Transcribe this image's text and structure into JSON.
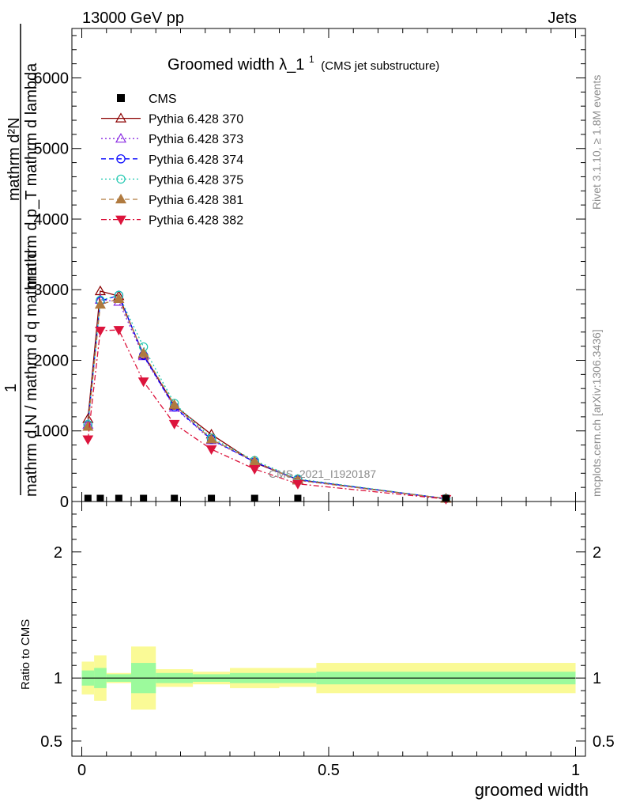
{
  "header": {
    "left": "13000 GeV pp",
    "right": "Jets"
  },
  "side_labels": {
    "rivet": "Rivet 3.1.10, ≥ 1.8M events",
    "mcplots": "mcplots.cern.ch [arXiv:1306.3436]"
  },
  "watermark": "CMS_2021_I1920187",
  "chart_data": {
    "type": "line",
    "title": "Groomed width",
    "title_symbol": "λ_1",
    "title_sup": "1",
    "title_suffix": "(CMS jet substructure)",
    "xlabel": "groomed width",
    "ylabel_main": {
      "numerator": "mathrm d²N",
      "denominator": "mathrm d p_T mathrm d lambda",
      "one": "1",
      "lower": "mathrm d N / mathrm d q mathrm d mathrm d",
      "lower_full": "mathrm d N / mathrm d q mathrm d"
    },
    "ylabel_ratio": "Ratio to CMS",
    "xlim": [
      -0.02,
      1.02
    ],
    "ylim_main": [
      0,
      6700
    ],
    "ylim_ratio": [
      0.38,
      2.4
    ],
    "x_ticks": [
      0,
      0.5,
      1
    ],
    "x_tick_labels": [
      "0",
      "0.5",
      "1"
    ],
    "y_ticks_main": [
      0,
      1000,
      2000,
      3000,
      4000,
      5000,
      6000
    ],
    "y_tick_labels_main": [
      "0",
      "1000",
      "2000",
      "3000",
      "4000",
      "5000",
      "6000"
    ],
    "y_ticks_ratio": [
      0.5,
      1,
      2
    ],
    "y_tick_labels_ratio": [
      "0.5",
      "1",
      "2"
    ],
    "bin_edges": [
      0,
      0.025,
      0.05,
      0.1,
      0.15,
      0.225,
      0.3,
      0.4,
      0.475,
      1.0
    ],
    "x": [
      0.0125,
      0.0375,
      0.075,
      0.125,
      0.1875,
      0.2625,
      0.35,
      0.4375,
      0.7375
    ],
    "data": {
      "name": "CMS",
      "values": [
        14,
        14,
        13,
        13,
        11,
        9,
        7,
        6,
        3
      ]
    },
    "series": [
      {
        "name": "Pythia 6.428 370",
        "color": "#8b0000",
        "marker": "triangle-open",
        "dash": "solid",
        "values": [
          1170,
          2980,
          2910,
          2080,
          1360,
          950,
          550,
          310,
          40
        ]
      },
      {
        "name": "Pythia 6.428 373",
        "color": "#8a2be2",
        "marker": "triangle-open",
        "dash": "dot",
        "values": [
          1090,
          2860,
          2830,
          2060,
          1330,
          870,
          560,
          300,
          40
        ]
      },
      {
        "name": "Pythia 6.428 374",
        "color": "#0000ff",
        "marker": "circle-open",
        "dash": "dash",
        "values": [
          1090,
          2840,
          2920,
          2070,
          1340,
          880,
          560,
          310,
          40
        ]
      },
      {
        "name": "Pythia 6.428 375",
        "color": "#20c8b0",
        "marker": "circle-open",
        "dash": "dot",
        "values": [
          1090,
          2850,
          2920,
          2190,
          1390,
          900,
          580,
          320,
          40
        ]
      },
      {
        "name": "Pythia 6.428 381",
        "color": "#b07a3f",
        "marker": "triangle-filled",
        "dash": "dash",
        "values": [
          1060,
          2790,
          2870,
          2100,
          1370,
          880,
          570,
          300,
          40
        ]
      },
      {
        "name": "Pythia 6.428 382",
        "color": "#dc143c",
        "marker": "triangle-down-filled",
        "dash": "dashdot",
        "values": [
          880,
          2420,
          2430,
          1700,
          1100,
          740,
          460,
          250,
          35
        ]
      }
    ],
    "ratio_bands": {
      "stat_lo": [
        0.94,
        0.92,
        0.97,
        0.88,
        0.96,
        0.97,
        0.96,
        0.96,
        0.95
      ],
      "stat_hi": [
        1.06,
        1.08,
        1.03,
        1.12,
        1.04,
        1.03,
        1.04,
        1.04,
        1.05
      ],
      "total_lo": [
        0.87,
        0.82,
        0.96,
        0.75,
        0.93,
        0.95,
        0.92,
        0.93,
        0.88
      ],
      "total_hi": [
        1.13,
        1.18,
        1.04,
        1.25,
        1.07,
        1.05,
        1.08,
        1.08,
        1.12
      ],
      "stat_color": "#9cfa9c",
      "total_color": "#fafa96"
    },
    "legend_position": "top-left"
  }
}
